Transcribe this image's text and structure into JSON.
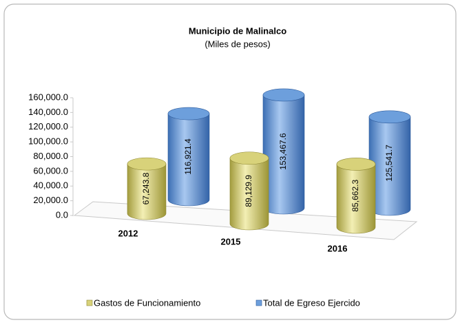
{
  "chart_data": {
    "type": "bar",
    "title": "Municipio de Malinalco",
    "subtitle": "(Miles de pesos)",
    "categories": [
      "2012",
      "2015",
      "2016"
    ],
    "series": [
      {
        "name": "Gastos de Funcionamiento",
        "color": "#d8d27a",
        "values": [
          67243.8,
          89129.9,
          85662.3
        ],
        "value_labels": [
          "67,243.8",
          "89,129.9",
          "85,662.3"
        ]
      },
      {
        "name": "Total de Egreso Ejercido",
        "color": "#6d9fdc",
        "values": [
          116921.4,
          153467.6,
          125541.7
        ],
        "value_labels": [
          "116,921.4",
          "153,467.6",
          "125,541.7"
        ]
      }
    ],
    "ylim": [
      0,
      160000
    ],
    "yticks": [
      {
        "value": 0,
        "label": "0.0"
      },
      {
        "value": 20000,
        "label": "20,000.0"
      },
      {
        "value": 40000,
        "label": "40,000.0"
      },
      {
        "value": 60000,
        "label": "60,000.0"
      },
      {
        "value": 80000,
        "label": "80,000.0"
      },
      {
        "value": 100000,
        "label": "100,000.0"
      },
      {
        "value": 120000,
        "label": "120,000.0"
      },
      {
        "value": 140000,
        "label": "140,000.0"
      },
      {
        "value": 160000,
        "label": "160,000.0"
      }
    ],
    "legend": "bottom"
  }
}
